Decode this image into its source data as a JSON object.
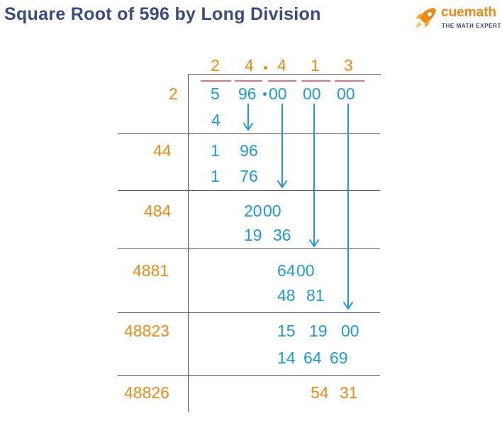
{
  "title": "Square Root of 596 by Long Division",
  "logo": {
    "brand": "cuemath",
    "tagline": "THE MATH EXPERT"
  },
  "quotient": [
    "2",
    "4",
    "4",
    "1",
    "3"
  ],
  "dividend_groups": [
    "5",
    "96",
    "00",
    "00",
    "00"
  ],
  "divisors": [
    "2",
    "44",
    "484",
    "4881",
    "48823",
    "48826"
  ],
  "work": [
    {
      "top": "",
      "bottom": "4"
    },
    {
      "top": "1 96",
      "bottom": "1 76"
    },
    {
      "top": "20 00",
      "bottom": "19 36"
    },
    {
      "top": "64 00",
      "bottom": "48 81"
    },
    {
      "top": "15 19 00",
      "bottom": "14 64 69"
    },
    {
      "top": "54 31",
      "bottom": ""
    }
  ],
  "colors": {
    "title": "#3a4a87",
    "divisor": "#f08a0f",
    "work": "#1b9ae0",
    "remainder": "#f08a0f",
    "bar": "#ef6f7c",
    "rule": "#555555"
  },
  "icons": {
    "logo": "rocket-icon"
  }
}
